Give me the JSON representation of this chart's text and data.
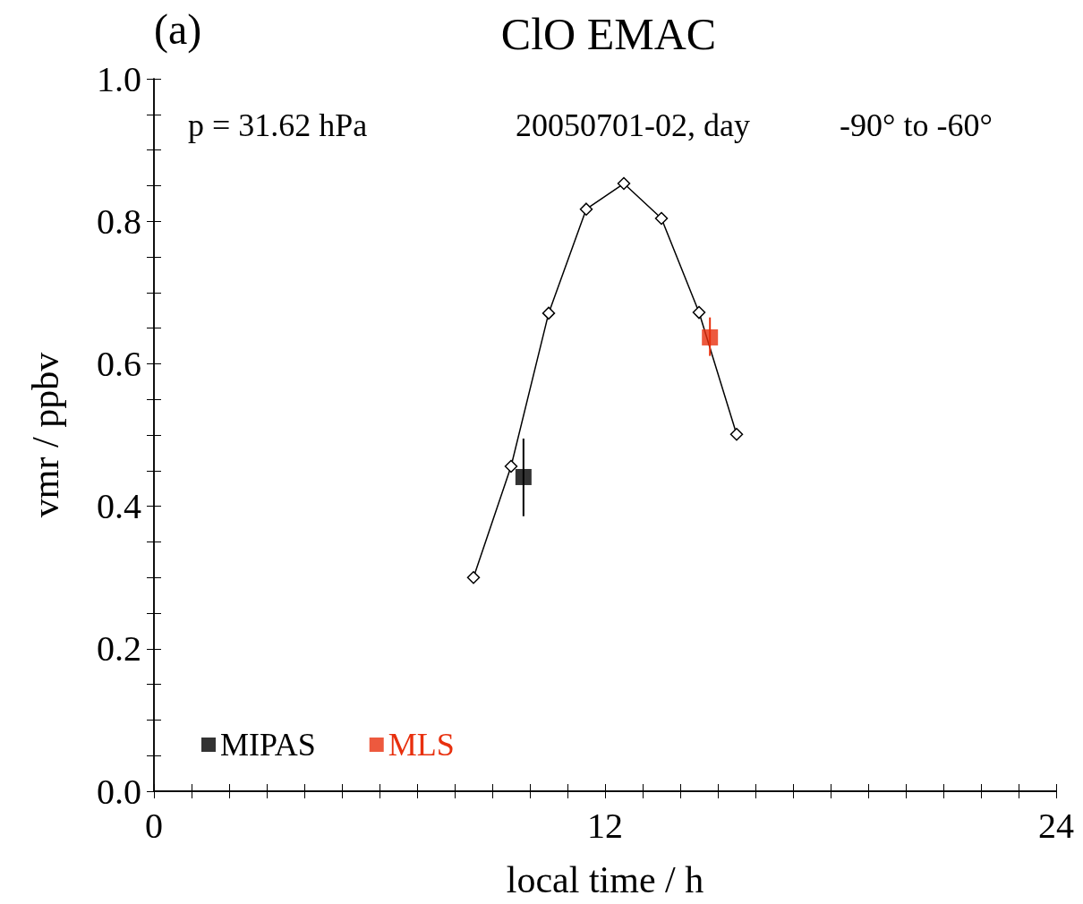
{
  "chart_data": {
    "type": "line",
    "title": "ClO EMAC",
    "xlabel": "local time / h",
    "ylabel": "vmr / ppbv",
    "annotations": [
      "(a)",
      "p = 31.62 hPa",
      "20050701-02, day",
      "-90° to -60°"
    ],
    "series": [
      {
        "color": "#000000",
        "marker": "diamond",
        "x": [
          8.5,
          9.5,
          10.5,
          11.5,
          12.5,
          13.5,
          14.5,
          15.5
        ],
        "values": [
          0.3,
          0.456,
          0.671,
          0.817,
          0.853,
          0.804,
          0.672,
          0.501
        ]
      },
      {
        "type": "scatter",
        "name": "MIPAS",
        "color": "#000000",
        "marker": "square",
        "x": [
          9.83
        ],
        "values": [
          0.441
        ],
        "errors": [
          [
            0.386,
            0.495
          ]
        ]
      },
      {
        "type": "scatter",
        "name": "MLS",
        "color": "#e8300e",
        "marker": "square",
        "x": [
          14.79
        ],
        "values": [
          0.637
        ],
        "errors": [
          [
            0.611,
            0.665
          ]
        ]
      }
    ],
    "xlim": [
      0,
      24
    ],
    "xticks": [
      0,
      {
        "value": 1,
        "label": null
      },
      {
        "value": 2,
        "label": null
      },
      {
        "value": 3,
        "label": null
      },
      {
        "value": 4,
        "label": null
      },
      {
        "value": 5,
        "label": null
      },
      {
        "value": 6,
        "label": null
      },
      {
        "value": 7,
        "label": null
      },
      {
        "value": 8,
        "label": null
      },
      {
        "value": 9,
        "label": null
      },
      {
        "value": 10,
        "label": null
      },
      {
        "value": 11,
        "label": null
      },
      12,
      {
        "value": 13,
        "label": null
      },
      {
        "value": 14,
        "label": null
      },
      {
        "value": 15,
        "label": null
      },
      {
        "value": 16,
        "label": null
      },
      {
        "value": 17,
        "label": null
      },
      {
        "value": 18,
        "label": null
      },
      {
        "value": 19,
        "label": null
      },
      {
        "value": 20,
        "label": null
      },
      {
        "value": 21,
        "label": null
      },
      {
        "value": 22,
        "label": null
      },
      {
        "value": 23,
        "label": null
      },
      24
    ],
    "ylim": [
      0,
      1
    ],
    "yticks": [
      {
        "value": 0,
        "label": "0.0"
      },
      {
        "value": 0.05,
        "label": null
      },
      {
        "value": 0.1,
        "label": null
      },
      {
        "value": 0.15,
        "label": null
      },
      {
        "value": 0.2,
        "label": "0.2"
      },
      {
        "value": 0.25,
        "label": null
      },
      {
        "value": 0.3,
        "label": null
      },
      {
        "value": 0.35,
        "label": null
      },
      {
        "value": 0.4,
        "label": "0.4"
      },
      {
        "value": 0.45,
        "label": null
      },
      {
        "value": 0.5,
        "label": null
      },
      {
        "value": 0.55,
        "label": null
      },
      {
        "value": 0.6,
        "label": "0.6"
      },
      {
        "value": 0.65,
        "label": null
      },
      {
        "value": 0.7,
        "label": null
      },
      {
        "value": 0.75,
        "label": null
      },
      {
        "value": 0.8,
        "label": "0.8"
      },
      {
        "value": 0.85,
        "label": null
      },
      {
        "value": 0.9,
        "label": null
      },
      {
        "value": 0.95,
        "label": null
      },
      {
        "value": 1,
        "label": "1.0"
      }
    ],
    "grid": false,
    "legend": "bottom left",
    "line_style": "solid"
  }
}
